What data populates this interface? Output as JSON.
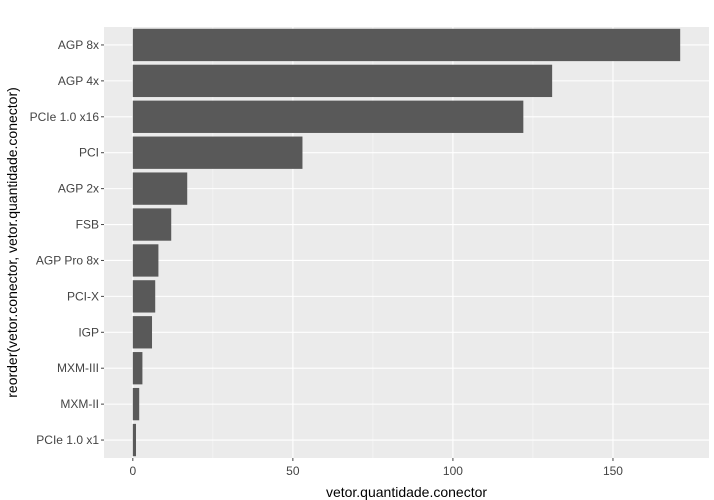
{
  "chart_data": {
    "type": "bar",
    "orientation": "horizontal",
    "title": "",
    "xlabel": "vetor.quantidade.conector",
    "ylabel": "reorder(vetor.conector, vetor.quantidade.conector)",
    "categories": [
      "AGP 8x",
      "AGP 4x",
      "PCIe 1.0 x16",
      "PCI",
      "AGP 2x",
      "FSB",
      "AGP Pro 8x",
      "PCI-X",
      "IGP",
      "MXM-III",
      "MXM-II",
      "PCIe 1.0 x1"
    ],
    "values": [
      171,
      131,
      122,
      53,
      17,
      12,
      8,
      7,
      6,
      3,
      2,
      1
    ],
    "xlim": [
      -9,
      180
    ],
    "xticks": [
      0,
      50,
      100,
      150
    ],
    "grid": true,
    "legend": "none",
    "colors": {
      "bar": "#595959",
      "panel": "#ebebeb",
      "grid_major": "#ffffff",
      "grid_minor": "#f5f5f5",
      "tick_text": "#444444",
      "axis_title": "#000000"
    }
  }
}
